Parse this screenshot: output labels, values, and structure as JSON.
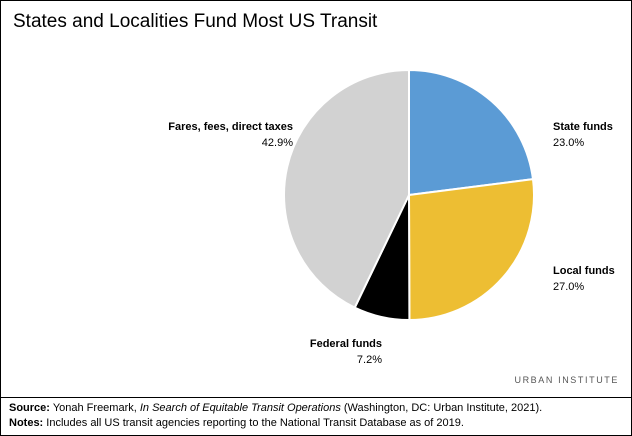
{
  "chart_data": {
    "type": "pie",
    "title": "States and Localities Fund Most US Transit",
    "start_angle_deg": 0,
    "direction": "clockwise",
    "slices": [
      {
        "label": "State funds",
        "value": 23.0,
        "display": "23.0%",
        "color": "#5b9bd5"
      },
      {
        "label": "Local funds",
        "value": 27.0,
        "display": "27.0%",
        "color": "#edbe33"
      },
      {
        "label": "Federal funds",
        "value": 7.2,
        "display": "7.2%",
        "color": "#000000"
      },
      {
        "label": "Fares, fees, direct taxes",
        "value": 42.9,
        "display": "42.9%",
        "color": "#d2d2d2"
      }
    ]
  },
  "brand": {
    "strong": "URBAN",
    "light": "INSTITUTE"
  },
  "footer": {
    "source_key": "Source:",
    "source_pre": " Yonah Freemark, ",
    "source_italic": "In Search of Equitable Transit Operations",
    "source_post": " (Washington, DC: Urban Institute, 2021).",
    "notes_key": "Notes:",
    "notes_text": " Includes all US transit agencies reporting to the National Transit Database as of 2019."
  }
}
